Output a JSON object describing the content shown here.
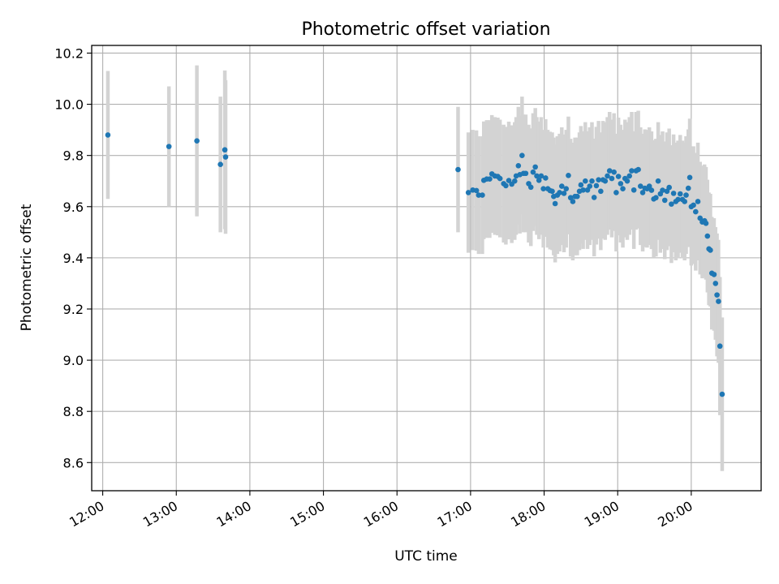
{
  "chart_data": {
    "type": "scatter",
    "title": "Photometric offset variation",
    "xlabel": "UTC time",
    "ylabel": "Photometric offset",
    "x_unit": "hours UTC",
    "xlim": [
      11.85,
      20.95
    ],
    "ylim": [
      8.49,
      10.23
    ],
    "x_ticks": [
      12,
      13,
      14,
      15,
      16,
      17,
      18,
      19,
      20
    ],
    "x_tick_labels": [
      "12:00",
      "13:00",
      "14:00",
      "15:00",
      "16:00",
      "17:00",
      "18:00",
      "19:00",
      "20:00"
    ],
    "y_ticks": [
      8.6,
      8.8,
      9.0,
      9.2,
      9.4,
      9.6,
      9.8,
      10.0,
      10.2
    ],
    "y_tick_labels": [
      "8.6",
      "8.8",
      "9.0",
      "9.2",
      "9.4",
      "9.6",
      "9.8",
      "10.0",
      "10.2"
    ],
    "grid": true,
    "marker_color": "#1f77b4",
    "errorbar_color": "#d3d3d3",
    "series": [
      {
        "points": [
          [
            12.07,
            9.88,
            0.25
          ],
          [
            12.9,
            9.835,
            0.235
          ],
          [
            13.28,
            9.857,
            0.295
          ],
          [
            13.6,
            9.765,
            0.265
          ],
          [
            13.66,
            9.822,
            0.31
          ],
          [
            13.67,
            9.794,
            0.3
          ],
          [
            16.83,
            9.745,
            0.245
          ],
          [
            16.97,
            9.655,
            0.235
          ],
          [
            17.03,
            9.665,
            0.235
          ],
          [
            17.08,
            9.663,
            0.235
          ],
          [
            17.11,
            9.645,
            0.23
          ],
          [
            17.16,
            9.645,
            0.23
          ],
          [
            17.18,
            9.703,
            0.23
          ],
          [
            17.22,
            9.708,
            0.23
          ],
          [
            17.26,
            9.708,
            0.23
          ],
          [
            17.29,
            9.728,
            0.23
          ],
          [
            17.33,
            9.72,
            0.23
          ],
          [
            17.37,
            9.718,
            0.23
          ],
          [
            17.4,
            9.71,
            0.23
          ],
          [
            17.45,
            9.69,
            0.23
          ],
          [
            17.48,
            9.682,
            0.23
          ],
          [
            17.52,
            9.702,
            0.23
          ],
          [
            17.56,
            9.688,
            0.23
          ],
          [
            17.6,
            9.7,
            0.23
          ],
          [
            17.62,
            9.72,
            0.23
          ],
          [
            17.65,
            9.76,
            0.23
          ],
          [
            17.67,
            9.725,
            0.23
          ],
          [
            17.7,
            9.8,
            0.23
          ],
          [
            17.72,
            9.73,
            0.23
          ],
          [
            17.75,
            9.73,
            0.23
          ],
          [
            17.79,
            9.69,
            0.23
          ],
          [
            17.82,
            9.676,
            0.23
          ],
          [
            17.85,
            9.735,
            0.23
          ],
          [
            17.88,
            9.755,
            0.23
          ],
          [
            17.9,
            9.72,
            0.23
          ],
          [
            17.93,
            9.703,
            0.23
          ],
          [
            17.96,
            9.72,
            0.23
          ],
          [
            17.99,
            9.67,
            0.23
          ],
          [
            18.02,
            9.712,
            0.23
          ],
          [
            18.05,
            9.67,
            0.23
          ],
          [
            18.08,
            9.663,
            0.23
          ],
          [
            18.11,
            9.66,
            0.23
          ],
          [
            18.13,
            9.64,
            0.23
          ],
          [
            18.15,
            9.612,
            0.23
          ],
          [
            18.18,
            9.645,
            0.23
          ],
          [
            18.21,
            9.655,
            0.23
          ],
          [
            18.24,
            9.68,
            0.23
          ],
          [
            18.27,
            9.652,
            0.23
          ],
          [
            18.3,
            9.67,
            0.23
          ],
          [
            18.33,
            9.722,
            0.23
          ],
          [
            18.36,
            9.635,
            0.23
          ],
          [
            18.39,
            9.62,
            0.23
          ],
          [
            18.42,
            9.64,
            0.23
          ],
          [
            18.45,
            9.64,
            0.23
          ],
          [
            18.48,
            9.66,
            0.23
          ],
          [
            18.5,
            9.685,
            0.23
          ],
          [
            18.53,
            9.665,
            0.23
          ],
          [
            18.56,
            9.7,
            0.23
          ],
          [
            18.59,
            9.665,
            0.23
          ],
          [
            18.62,
            9.68,
            0.23
          ],
          [
            18.65,
            9.7,
            0.23
          ],
          [
            18.68,
            9.636,
            0.23
          ],
          [
            18.71,
            9.682,
            0.23
          ],
          [
            18.74,
            9.705,
            0.23
          ],
          [
            18.77,
            9.66,
            0.23
          ],
          [
            18.8,
            9.705,
            0.23
          ],
          [
            18.83,
            9.7,
            0.23
          ],
          [
            18.86,
            9.72,
            0.23
          ],
          [
            18.89,
            9.74,
            0.23
          ],
          [
            18.92,
            9.71,
            0.23
          ],
          [
            18.95,
            9.735,
            0.23
          ],
          [
            18.98,
            9.655,
            0.23
          ],
          [
            19.01,
            9.718,
            0.23
          ],
          [
            19.04,
            9.69,
            0.23
          ],
          [
            19.07,
            9.67,
            0.23
          ],
          [
            19.1,
            9.71,
            0.23
          ],
          [
            19.13,
            9.7,
            0.23
          ],
          [
            19.16,
            9.72,
            0.23
          ],
          [
            19.19,
            9.74,
            0.23
          ],
          [
            19.22,
            9.665,
            0.23
          ],
          [
            19.25,
            9.74,
            0.23
          ],
          [
            19.28,
            9.745,
            0.23
          ],
          [
            19.31,
            9.68,
            0.23
          ],
          [
            19.34,
            9.655,
            0.23
          ],
          [
            19.37,
            9.672,
            0.23
          ],
          [
            19.4,
            9.67,
            0.23
          ],
          [
            19.43,
            9.68,
            0.23
          ],
          [
            19.46,
            9.664,
            0.23
          ],
          [
            19.49,
            9.63,
            0.23
          ],
          [
            19.52,
            9.635,
            0.23
          ],
          [
            19.55,
            9.7,
            0.23
          ],
          [
            19.58,
            9.65,
            0.23
          ],
          [
            19.61,
            9.664,
            0.23
          ],
          [
            19.64,
            9.625,
            0.23
          ],
          [
            19.67,
            9.66,
            0.23
          ],
          [
            19.7,
            9.675,
            0.23
          ],
          [
            19.73,
            9.61,
            0.23
          ],
          [
            19.76,
            9.652,
            0.23
          ],
          [
            19.79,
            9.62,
            0.23
          ],
          [
            19.82,
            9.628,
            0.23
          ],
          [
            19.85,
            9.65,
            0.23
          ],
          [
            19.88,
            9.628,
            0.23
          ],
          [
            19.91,
            9.62,
            0.23
          ],
          [
            19.93,
            9.645,
            0.23
          ],
          [
            19.96,
            9.672,
            0.23
          ],
          [
            19.98,
            9.714,
            0.23
          ],
          [
            20.0,
            9.6,
            0.23
          ],
          [
            20.03,
            9.606,
            0.23
          ],
          [
            20.06,
            9.58,
            0.23
          ],
          [
            20.09,
            9.62,
            0.23
          ],
          [
            20.12,
            9.555,
            0.22
          ],
          [
            20.15,
            9.54,
            0.22
          ],
          [
            20.18,
            9.545,
            0.22
          ],
          [
            20.2,
            9.535,
            0.22
          ],
          [
            20.22,
            9.485,
            0.22
          ],
          [
            20.24,
            9.435,
            0.22
          ],
          [
            20.26,
            9.43,
            0.22
          ],
          [
            20.28,
            9.34,
            0.22
          ],
          [
            20.31,
            9.335,
            0.22
          ],
          [
            20.33,
            9.3,
            0.22
          ],
          [
            20.35,
            9.255,
            0.24
          ],
          [
            20.37,
            9.23,
            0.24
          ],
          [
            20.39,
            9.055,
            0.27
          ],
          [
            20.42,
            8.867,
            0.3
          ]
        ]
      }
    ]
  }
}
